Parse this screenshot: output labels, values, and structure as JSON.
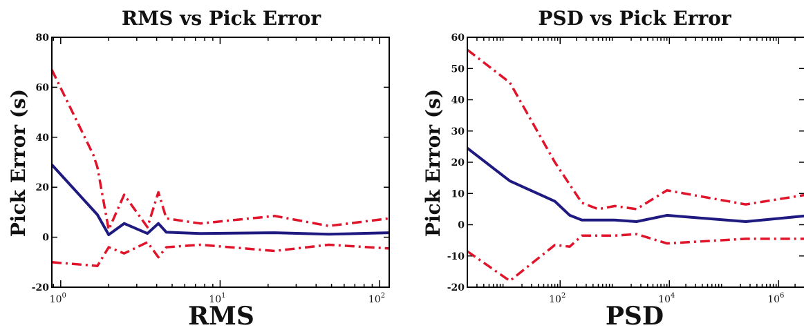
{
  "chart_data": [
    {
      "type": "line",
      "title": "RMS vs Pick Error",
      "xlabel": "RMS",
      "ylabel": "Pick Error (s)",
      "xscale": "log",
      "xlim": [
        0.88,
        115
      ],
      "ylim": [
        -20,
        80
      ],
      "xticks": [
        {
          "base": "10",
          "exp": "0",
          "value": 1
        },
        {
          "base": "10",
          "exp": "1",
          "value": 10
        },
        {
          "base": "10",
          "exp": "2",
          "value": 100
        }
      ],
      "yticks": [
        -20,
        0,
        20,
        40,
        60,
        80
      ],
      "colors": {
        "mean": "#1f1a80",
        "bounds": "#e0142a"
      },
      "series": [
        {
          "style": "solid",
          "color": "#1f1a80",
          "x": [
            0.88,
            1.7,
            2.0,
            2.5,
            3.5,
            4.1,
            4.6,
            7.5,
            22,
            48,
            115
          ],
          "y": [
            29,
            9,
            1,
            5.5,
            1.5,
            5.5,
            2,
            1.5,
            1.8,
            1.2,
            1.8
          ]
        },
        {
          "style": "dashdot",
          "color": "#e0142a",
          "x": [
            0.88,
            1.6,
            1.7,
            2.0,
            2.5,
            3.5,
            4.1,
            4.6,
            7.5,
            22,
            48,
            115
          ],
          "y": [
            67,
            33,
            28,
            3,
            17,
            4,
            18,
            7.5,
            5.5,
            8.5,
            4.5,
            7.5
          ]
        },
        {
          "style": "dashdot",
          "color": "#e0142a",
          "x": [
            0.88,
            1.7,
            2.0,
            2.5,
            3.5,
            4.1,
            4.6,
            7.5,
            22,
            48,
            115
          ],
          "y": [
            -10,
            -11.5,
            -4,
            -6.5,
            -2,
            -8,
            -4,
            -3,
            -5.5,
            -3,
            -4.5
          ]
        }
      ]
    },
    {
      "type": "line",
      "title": "PSD vs Pick Error",
      "xlabel": "PSD",
      "ylabel": "Pick Error (s)",
      "xscale": "log",
      "xlim": [
        2,
        3000000
      ],
      "ylim": [
        -20,
        60
      ],
      "xticks": [
        {
          "base": "10",
          "exp": "2",
          "value": 100
        },
        {
          "base": "10",
          "exp": "4",
          "value": 10000
        },
        {
          "base": "10",
          "exp": "6",
          "value": 1000000
        }
      ],
      "yticks": [
        -20,
        -10,
        0,
        10,
        20,
        30,
        40,
        50,
        60
      ],
      "colors": {
        "mean": "#1f1a80",
        "bounds": "#e0142a"
      },
      "series": [
        {
          "style": "solid",
          "color": "#1f1a80",
          "x": [
            2,
            12,
            80,
            150,
            250,
            1000,
            2500,
            9000,
            250000,
            3000000
          ],
          "y": [
            24.5,
            14,
            7.5,
            3,
            1.5,
            1.5,
            1,
            3,
            1,
            2.8
          ]
        },
        {
          "style": "dashdot",
          "color": "#e0142a",
          "x": [
            2,
            12,
            80,
            250,
            500,
            1000,
            2500,
            9000,
            250000,
            3000000
          ],
          "y": [
            56,
            45.5,
            20,
            7,
            5,
            6,
            5,
            11,
            6.5,
            9.5
          ]
        },
        {
          "style": "dashdot",
          "color": "#e0142a",
          "x": [
            2,
            12,
            80,
            150,
            250,
            1000,
            2500,
            9000,
            250000,
            3000000
          ],
          "y": [
            -8.5,
            -18,
            -6.5,
            -7,
            -3.5,
            -3.5,
            -3,
            -6,
            -4.5,
            -4.5
          ]
        }
      ]
    }
  ]
}
